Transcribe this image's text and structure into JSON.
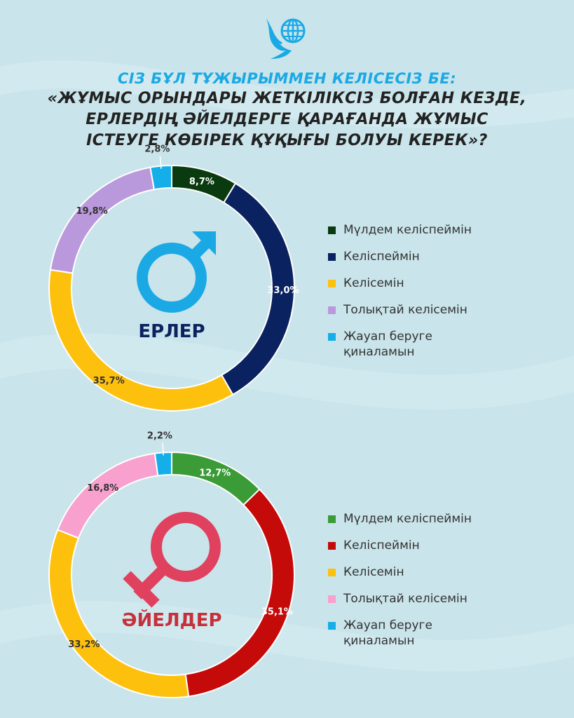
{
  "title": {
    "question": "СІЗ БҰЛ ТҰЖЫРЫММЕН КЕЛІСЕСІЗ БЕ:",
    "line1": "«ЖҰМЫС ОРЫНДАРЫ ЖЕТКІЛІКСІЗ БОЛҒАН КЕЗДЕ,",
    "line2": "ЕРЛЕРДІҢ ӘЙЕЛДЕРГЕ ҚАРАҒАНДА ЖҰМЫС",
    "line3": "ІСТЕУГЕ КӨБІРЕК ҚҰҚЫҒЫ БОЛУЫ КЕРЕК»?"
  },
  "icons": {
    "logo": "globe-bird-logo-icon",
    "male": "male-symbol-icon",
    "female": "female-symbol-icon"
  },
  "chart_data": [
    {
      "type": "pie",
      "center_label": "ЕРЛЕР",
      "categories": [
        "Мүлдем келіспеймін",
        "Келіспеймін",
        "Келісемін",
        "Толықтай келісемін",
        "Жауап беруге қиналамын"
      ],
      "values": [
        8.7,
        33.0,
        35.7,
        19.8,
        2.8
      ],
      "labels": [
        "8,7%",
        "33,0%",
        "35,7%",
        "19,8%",
        "2,8%"
      ],
      "colors": [
        "#0a3b10",
        "#0b2260",
        "#fdc10d",
        "#b999dc",
        "#14aee8"
      ],
      "label_colors": [
        "#ffffff",
        "#ffffff",
        "#333333",
        "#333333",
        "#333333"
      ],
      "legend": "right"
    },
    {
      "type": "pie",
      "center_label": "ӘЙЕЛДЕР",
      "categories": [
        "Мүлдем келіспеймін",
        "Келіспеймін",
        "Келісемін",
        "Толықтай келісемін",
        "Жауап беруге қиналамын"
      ],
      "values": [
        12.7,
        35.1,
        33.2,
        16.8,
        2.2
      ],
      "labels": [
        "12,7%",
        "35,1%",
        "33,2%",
        "16,8%",
        "2,2%"
      ],
      "colors": [
        "#3b9b37",
        "#c50a0a",
        "#fdc10d",
        "#f8a1cf",
        "#14aee8"
      ],
      "label_colors": [
        "#ffffff",
        "#ffffff",
        "#333333",
        "#333333",
        "#333333"
      ],
      "legend": "right"
    }
  ]
}
